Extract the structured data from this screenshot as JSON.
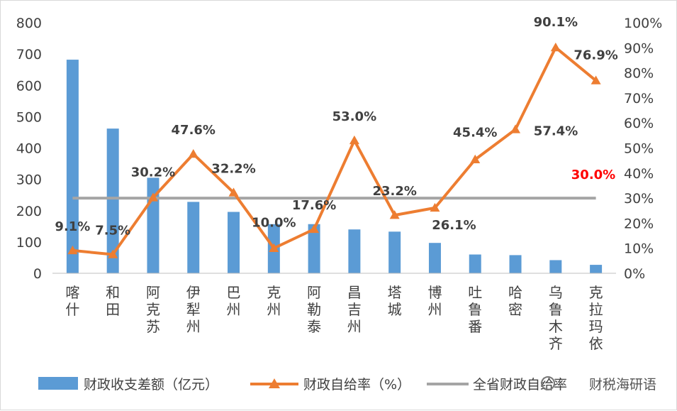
{
  "chart_data": {
    "type": "bar+line",
    "categories": [
      "喀什",
      "和田",
      "阿克苏",
      "伊犁州",
      "巴州",
      "克州",
      "阿勒泰",
      "昌吉州",
      "塔城",
      "博州",
      "吐鲁番",
      "哈密",
      "乌鲁木齐",
      "克拉玛依"
    ],
    "series": [
      {
        "name": "财政收支差额（亿元）",
        "type": "bar",
        "axis": "left",
        "color": "#5b9bd5",
        "values": [
          682,
          462,
          305,
          228,
          196,
          157,
          157,
          140,
          133,
          97,
          60,
          58,
          42,
          27
        ]
      },
      {
        "name": "财政自给率（%）",
        "type": "line",
        "axis": "right",
        "color": "#ed7d31",
        "marker": "triangle",
        "values": [
          9.1,
          7.5,
          30.2,
          47.6,
          32.2,
          10.0,
          17.6,
          53.0,
          23.2,
          26.1,
          45.4,
          57.4,
          90.1,
          76.9
        ],
        "labels": [
          "9.1%",
          "7.5%",
          "30.2%",
          "47.6%",
          "32.2%",
          "10.0%",
          "17.6%",
          "53.0%",
          "23.2%",
          "26.1%",
          "45.4%",
          "57.4%",
          "90.1%",
          "76.9%"
        ]
      },
      {
        "name": "全省财政自给率",
        "type": "reference-line",
        "axis": "right",
        "color": "#a5a5a5",
        "value": 30.0,
        "label": "30.0%",
        "label_color": "#ff0000"
      }
    ],
    "left_axis": {
      "ylim": [
        0,
        800
      ],
      "ticks": [
        "0",
        "100",
        "200",
        "300",
        "400",
        "500",
        "600",
        "700",
        "800"
      ]
    },
    "right_axis": {
      "ylim": [
        0,
        100
      ],
      "ticks": [
        "0%",
        "10%",
        "20%",
        "30%",
        "40%",
        "50%",
        "60%",
        "70%",
        "80%",
        "90%",
        "100%"
      ]
    },
    "grid": false,
    "legend": "bottom"
  },
  "watermark": "财税海研语"
}
